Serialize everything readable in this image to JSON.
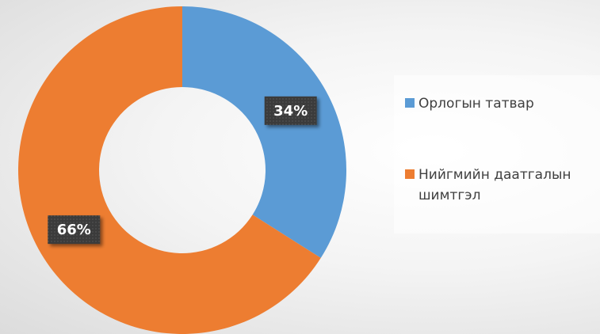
{
  "chart_data": {
    "type": "donut",
    "categories": [
      "Орлогын татвар",
      "Нийгмийн даатгалын шимтгэл"
    ],
    "values": [
      34,
      66
    ],
    "value_labels": [
      "34%",
      "66%"
    ],
    "colors": [
      "#5b9bd5",
      "#ed7d31"
    ],
    "legend": "right"
  }
}
